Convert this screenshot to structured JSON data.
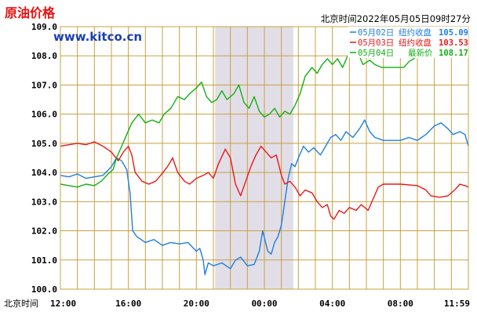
{
  "header": {
    "title": "原油价格",
    "website": "www.kitco.cn",
    "timestamp": "北京时间2022年05月05日09时27分"
  },
  "colors": {
    "background": "#FFFFFF",
    "frame": "#C8A040",
    "grid": "#C8A040",
    "shade": "#E2DEE8",
    "title": "#E81010",
    "website": "#1A3FB0",
    "series_may02": "#1E7FE0",
    "series_may03": "#E81818",
    "series_may04": "#10B010"
  },
  "chart_data": {
    "type": "line",
    "xlabel": "北京时间",
    "x_ticks": [
      "12:00",
      "16:00",
      "20:00",
      "00:00",
      "04:00",
      "08:00",
      "11:59"
    ],
    "y_ticks": [
      "100.0",
      "101.0",
      "102.0",
      "103.0",
      "104.0",
      "105.0",
      "106.0",
      "107.0",
      "108.0",
      "109.0"
    ],
    "ylim": [
      100,
      109
    ],
    "xlim_hours": [
      0,
      24
    ],
    "shaded_band_hours": [
      9.1,
      13.7
    ],
    "grid": true,
    "legend_position": "top-right",
    "series": [
      {
        "name": "05月02日",
        "legend_label": "纽约收盘",
        "legend_value": "105.09",
        "color": "#1E7FE0",
        "points": [
          [
            0,
            103.9
          ],
          [
            0.5,
            103.85
          ],
          [
            1,
            103.95
          ],
          [
            1.5,
            103.8
          ],
          [
            2,
            103.85
          ],
          [
            2.5,
            103.9
          ],
          [
            3,
            104.2
          ],
          [
            3.3,
            104.5
          ],
          [
            3.6,
            104.4
          ],
          [
            3.9,
            104.1
          ],
          [
            4.1,
            103.3
          ],
          [
            4.25,
            102.0
          ],
          [
            4.5,
            101.8
          ],
          [
            5,
            101.6
          ],
          [
            5.5,
            101.7
          ],
          [
            6,
            101.5
          ],
          [
            6.5,
            101.6
          ],
          [
            7,
            101.55
          ],
          [
            7.5,
            101.6
          ],
          [
            8,
            101.3
          ],
          [
            8.2,
            101.4
          ],
          [
            8.4,
            101.0
          ],
          [
            8.5,
            100.5
          ],
          [
            8.7,
            100.9
          ],
          [
            9,
            100.8
          ],
          [
            9.5,
            100.9
          ],
          [
            10,
            100.7
          ],
          [
            10.3,
            101.0
          ],
          [
            10.6,
            101.1
          ],
          [
            11,
            100.8
          ],
          [
            11.4,
            100.85
          ],
          [
            11.7,
            101.3
          ],
          [
            11.9,
            102.0
          ],
          [
            12.2,
            101.3
          ],
          [
            12.4,
            101.2
          ],
          [
            12.6,
            101.6
          ],
          [
            12.8,
            101.8
          ],
          [
            13,
            102.2
          ],
          [
            13.2,
            103.0
          ],
          [
            13.4,
            103.8
          ],
          [
            13.6,
            104.3
          ],
          [
            13.8,
            104.2
          ],
          [
            14,
            104.5
          ],
          [
            14.3,
            104.9
          ],
          [
            14.6,
            104.7
          ],
          [
            14.9,
            104.85
          ],
          [
            15.3,
            104.6
          ],
          [
            15.6,
            104.9
          ],
          [
            15.9,
            105.2
          ],
          [
            16.2,
            105.3
          ],
          [
            16.5,
            105.1
          ],
          [
            16.8,
            105.4
          ],
          [
            17.2,
            105.2
          ],
          [
            17.6,
            105.5
          ],
          [
            17.9,
            105.8
          ],
          [
            18.2,
            105.4
          ],
          [
            18.5,
            105.2
          ],
          [
            19,
            105.1
          ],
          [
            20,
            105.1
          ],
          [
            20.5,
            105.2
          ],
          [
            21,
            105.1
          ],
          [
            21.5,
            105.3
          ],
          [
            22,
            105.6
          ],
          [
            22.4,
            105.7
          ],
          [
            22.8,
            105.5
          ],
          [
            23.1,
            105.3
          ],
          [
            23.5,
            105.4
          ],
          [
            23.8,
            105.3
          ],
          [
            24,
            104.9
          ]
        ]
      },
      {
        "name": "05月03日",
        "legend_label": "纽约收盘",
        "legend_value": "103.53",
        "color": "#E81818",
        "points": [
          [
            0,
            104.9
          ],
          [
            0.5,
            104.95
          ],
          [
            1,
            105.0
          ],
          [
            1.5,
            104.95
          ],
          [
            2,
            105.05
          ],
          [
            2.5,
            104.9
          ],
          [
            3,
            104.7
          ],
          [
            3.4,
            104.4
          ],
          [
            3.7,
            104.7
          ],
          [
            4,
            104.9
          ],
          [
            4.2,
            104.6
          ],
          [
            4.4,
            104.0
          ],
          [
            4.8,
            103.7
          ],
          [
            5.2,
            103.6
          ],
          [
            5.6,
            103.7
          ],
          [
            5.9,
            103.9
          ],
          [
            6.3,
            104.2
          ],
          [
            6.6,
            104.5
          ],
          [
            6.9,
            104.0
          ],
          [
            7.3,
            103.7
          ],
          [
            7.6,
            103.6
          ],
          [
            8,
            103.8
          ],
          [
            8.4,
            103.9
          ],
          [
            8.7,
            104.0
          ],
          [
            9,
            103.8
          ],
          [
            9.3,
            104.3
          ],
          [
            9.7,
            104.8
          ],
          [
            10,
            104.5
          ],
          [
            10.3,
            103.6
          ],
          [
            10.6,
            103.2
          ],
          [
            10.9,
            103.7
          ],
          [
            11.2,
            104.2
          ],
          [
            11.5,
            104.6
          ],
          [
            11.8,
            104.9
          ],
          [
            12.1,
            104.7
          ],
          [
            12.4,
            104.5
          ],
          [
            12.7,
            104.6
          ],
          [
            13,
            103.9
          ],
          [
            13.2,
            103.6
          ],
          [
            13.5,
            103.7
          ],
          [
            13.8,
            103.5
          ],
          [
            14.1,
            103.2
          ],
          [
            14.4,
            103.4
          ],
          [
            14.8,
            103.3
          ],
          [
            15.1,
            103.0
          ],
          [
            15.4,
            102.8
          ],
          [
            15.7,
            102.9
          ],
          [
            15.9,
            102.5
          ],
          [
            16.1,
            102.4
          ],
          [
            16.4,
            102.7
          ],
          [
            16.7,
            102.6
          ],
          [
            17,
            102.8
          ],
          [
            17.4,
            102.7
          ],
          [
            17.7,
            102.9
          ],
          [
            18.1,
            102.7
          ],
          [
            18.4,
            103.1
          ],
          [
            18.7,
            103.5
          ],
          [
            19,
            103.6
          ],
          [
            20,
            103.6
          ],
          [
            21,
            103.55
          ],
          [
            21.5,
            103.4
          ],
          [
            21.8,
            103.2
          ],
          [
            22.3,
            103.15
          ],
          [
            22.8,
            103.2
          ],
          [
            23.2,
            103.4
          ],
          [
            23.5,
            103.6
          ],
          [
            23.8,
            103.55
          ],
          [
            24,
            103.5
          ]
        ]
      },
      {
        "name": "05月04日",
        "legend_label": "最新价",
        "legend_value": "108.17",
        "color": "#10B010",
        "points": [
          [
            0,
            103.6
          ],
          [
            0.5,
            103.55
          ],
          [
            1,
            103.5
          ],
          [
            1.5,
            103.6
          ],
          [
            2,
            103.55
          ],
          [
            2.4,
            103.7
          ],
          [
            2.8,
            103.95
          ],
          [
            3.1,
            104.1
          ],
          [
            3.3,
            104.5
          ],
          [
            3.6,
            104.9
          ],
          [
            3.9,
            105.3
          ],
          [
            4.2,
            105.7
          ],
          [
            4.6,
            106.0
          ],
          [
            5,
            105.7
          ],
          [
            5.4,
            105.8
          ],
          [
            5.8,
            105.7
          ],
          [
            6.1,
            106.0
          ],
          [
            6.5,
            106.2
          ],
          [
            6.9,
            106.6
          ],
          [
            7.3,
            106.5
          ],
          [
            7.6,
            106.7
          ],
          [
            8,
            106.9
          ],
          [
            8.3,
            107.1
          ],
          [
            8.6,
            106.6
          ],
          [
            8.9,
            106.4
          ],
          [
            9.2,
            106.5
          ],
          [
            9.5,
            106.8
          ],
          [
            9.8,
            106.5
          ],
          [
            10.2,
            106.7
          ],
          [
            10.5,
            107.0
          ],
          [
            10.8,
            106.4
          ],
          [
            11.1,
            106.2
          ],
          [
            11.4,
            106.6
          ],
          [
            11.7,
            106.1
          ],
          [
            12,
            105.9
          ],
          [
            12.3,
            106.0
          ],
          [
            12.6,
            106.2
          ],
          [
            12.9,
            105.9
          ],
          [
            13.2,
            106.1
          ],
          [
            13.5,
            106.0
          ],
          [
            13.8,
            106.3
          ],
          [
            14.1,
            106.7
          ],
          [
            14.4,
            107.3
          ],
          [
            14.8,
            107.6
          ],
          [
            15.1,
            107.4
          ],
          [
            15.4,
            107.7
          ],
          [
            15.7,
            107.9
          ],
          [
            16,
            107.7
          ],
          [
            16.3,
            107.9
          ],
          [
            16.6,
            107.6
          ],
          [
            16.9,
            108.0
          ],
          [
            17.2,
            108.4
          ],
          [
            17.5,
            108.1
          ],
          [
            17.8,
            107.7
          ],
          [
            18.2,
            107.85
          ],
          [
            18.5,
            107.7
          ],
          [
            18.9,
            107.6
          ],
          [
            19.3,
            107.6
          ],
          [
            19.8,
            107.6
          ],
          [
            20.2,
            107.6
          ],
          [
            20.5,
            107.8
          ],
          [
            20.8,
            107.9
          ],
          [
            21.0,
            108.17
          ]
        ]
      }
    ]
  }
}
